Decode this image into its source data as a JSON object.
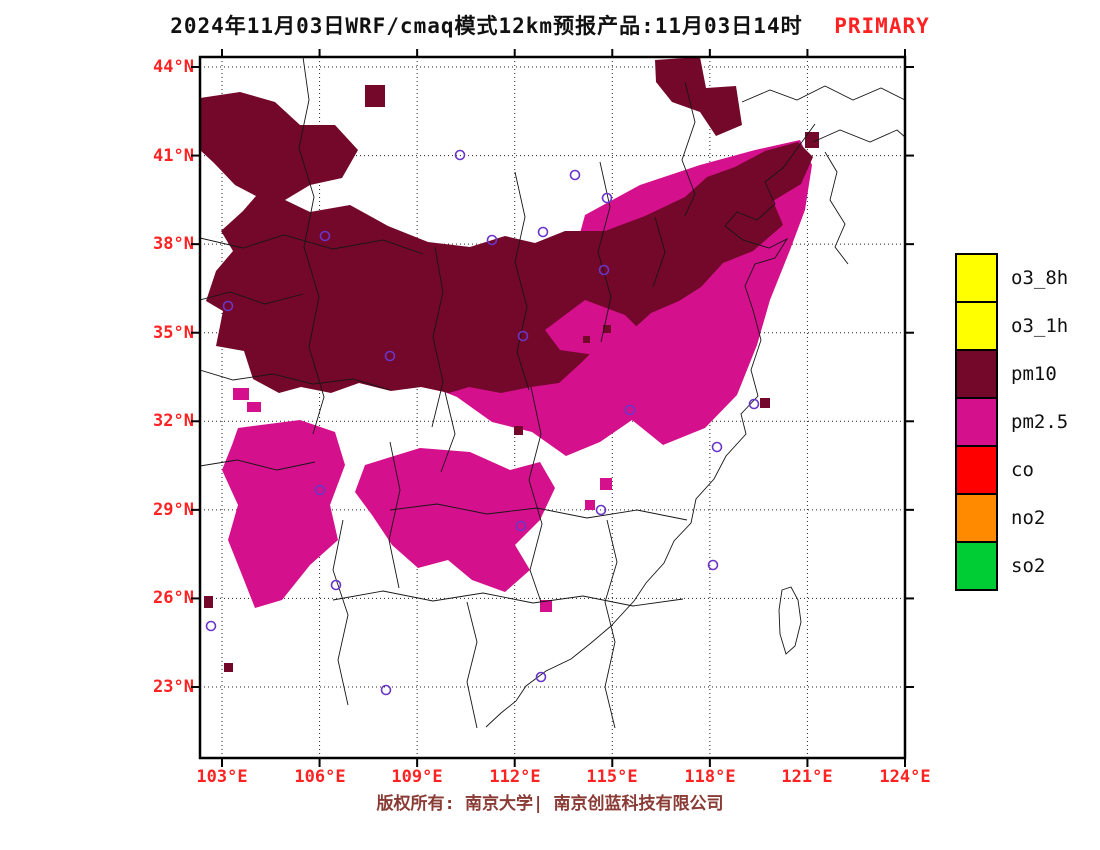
{
  "title": {
    "text": "2024年11月03日WRF/cmaq模式12km预报产品:11月03日14时",
    "text_color": "#111111",
    "highlight": "PRIMARY",
    "highlight_color": "#ff2222"
  },
  "axes": {
    "lat_ticks": [
      "44°N",
      "41°N",
      "38°N",
      "35°N",
      "32°N",
      "29°N",
      "26°N",
      "23°N"
    ],
    "lon_ticks": [
      "103°E",
      "106°E",
      "109°E",
      "112°E",
      "115°E",
      "118°E",
      "121°E",
      "124°E"
    ],
    "tick_label_color": "#ff2222"
  },
  "legend": {
    "items": [
      {
        "label": "o3_8h",
        "color": "#ffff00"
      },
      {
        "label": "o3_1h",
        "color": "#ffff00"
      },
      {
        "label": "pm10",
        "color": "#73082a"
      },
      {
        "label": "pm2.5",
        "color": "#d4108c"
      },
      {
        "label": "co",
        "color": "#ff0000"
      },
      {
        "label": "no2",
        "color": "#ff8a00"
      },
      {
        "label": "so2",
        "color": "#00cc33"
      }
    ]
  },
  "map": {
    "pm10_color": "#73082a",
    "pm25_color": "#d4108c",
    "marker_color": "#6a35c8",
    "frame_color": "#000000"
  },
  "footer": {
    "copyright": "版权所有: 南京大学| 南京创蓝科技有限公司",
    "color": "#8a3b35"
  }
}
